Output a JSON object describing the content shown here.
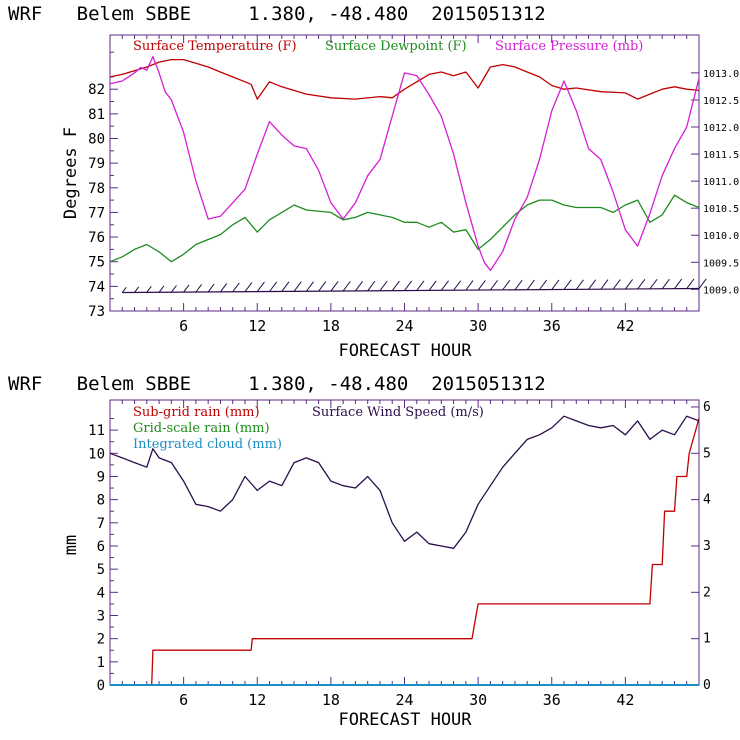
{
  "chart_data": [
    {
      "type": "line",
      "title": "WRF   Belem SBBE     1.380, -48.480  2015051312",
      "xlabel": "FORECAST HOUR",
      "ylabel": "Degrees F",
      "xlim": [
        0,
        48
      ],
      "ylim": [
        73,
        84.2
      ],
      "x_ticks": [
        "6",
        "12",
        "18",
        "24",
        "30",
        "36",
        "42"
      ],
      "y_ticks": [
        "73",
        "74",
        "75",
        "76",
        "77",
        "78",
        "79",
        "80",
        "81",
        "82"
      ],
      "y2_ticks": [
        "1009.0",
        "1009.5",
        "1010.0",
        "1010.5",
        "1011.0",
        "1011.5",
        "1012.0",
        "1012.5",
        "1013.0"
      ],
      "y2lim": [
        1008.6,
        1013.7
      ],
      "legend": [
        "Surface Temperature (F)",
        "Surface Dewpoint (F)",
        "Surface Pressure (mb)"
      ],
      "colors": {
        "temp": "#c00000",
        "dew": "#1e8c1e",
        "pres": "#d61ed6",
        "wind": "#2a0d4a",
        "axis": "#5b2a86"
      },
      "series": [
        {
          "name": "Surface Temperature (F)",
          "axis": "left",
          "x": [
            0,
            1,
            2,
            3,
            4,
            5,
            6,
            7,
            8,
            9,
            10,
            11,
            11.5,
            12,
            13,
            14,
            16,
            18,
            20,
            22,
            23,
            24,
            25,
            26,
            27,
            28,
            29,
            30,
            31,
            32,
            33,
            34,
            35,
            36,
            37,
            38,
            40,
            42,
            43,
            44,
            45,
            46,
            47,
            48
          ],
          "y": [
            82.5,
            82.6,
            82.75,
            82.9,
            83.1,
            83.2,
            83.2,
            83.05,
            82.9,
            82.7,
            82.5,
            82.3,
            82.2,
            81.6,
            82.3,
            82.1,
            81.8,
            81.65,
            81.6,
            81.7,
            81.65,
            82.0,
            82.3,
            82.6,
            82.7,
            82.55,
            82.7,
            82.05,
            82.9,
            83.0,
            82.9,
            82.7,
            82.5,
            82.15,
            82.0,
            82.05,
            81.9,
            81.85,
            81.6,
            81.8,
            82.0,
            82.1,
            82.0,
            81.95
          ]
        },
        {
          "name": "Surface Dewpoint (F)",
          "axis": "left",
          "x": [
            0,
            1,
            2,
            3,
            4,
            5,
            6,
            7,
            8,
            9,
            10,
            11,
            12,
            13,
            14,
            15,
            16,
            18,
            19,
            20,
            21,
            22,
            23,
            24,
            25,
            26,
            27,
            28,
            29,
            30,
            31,
            32,
            33,
            34,
            35,
            36,
            37,
            38,
            40,
            41,
            42,
            43,
            44,
            45,
            46,
            47,
            48
          ],
          "y": [
            75.0,
            75.2,
            75.5,
            75.7,
            75.4,
            75.0,
            75.3,
            75.7,
            75.9,
            76.1,
            76.5,
            76.8,
            76.2,
            76.7,
            77.0,
            77.3,
            77.1,
            77.0,
            76.7,
            76.8,
            77.0,
            76.9,
            76.8,
            76.6,
            76.6,
            76.4,
            76.6,
            76.2,
            76.3,
            75.5,
            75.9,
            76.4,
            76.9,
            77.3,
            77.5,
            77.5,
            77.3,
            77.2,
            77.2,
            77.0,
            77.3,
            77.5,
            76.6,
            76.9,
            77.7,
            77.4,
            77.2
          ]
        },
        {
          "name": "Surface Pressure (mb)",
          "axis": "right",
          "x": [
            0,
            1,
            2,
            2.5,
            3,
            3.5,
            4,
            4.5,
            5,
            6,
            7,
            8,
            9,
            10,
            11,
            12,
            13,
            14,
            15,
            16,
            17,
            18,
            19,
            20,
            21,
            22,
            23,
            24,
            25,
            26,
            27,
            28,
            29,
            30,
            30.5,
            31,
            32,
            33,
            34,
            35,
            36,
            37,
            38,
            39,
            40,
            41,
            42,
            43,
            44,
            45,
            46,
            47,
            48
          ],
          "y": [
            1012.8,
            1012.85,
            1013.0,
            1013.1,
            1013.05,
            1013.3,
            1013.0,
            1012.65,
            1012.5,
            1011.9,
            1011.0,
            1010.3,
            1010.35,
            1010.6,
            1010.85,
            1011.5,
            1012.1,
            1011.85,
            1011.65,
            1011.6,
            1011.2,
            1010.6,
            1010.3,
            1010.6,
            1011.1,
            1011.4,
            1012.2,
            1013.0,
            1012.95,
            1012.6,
            1012.2,
            1011.5,
            1010.6,
            1009.8,
            1009.5,
            1009.35,
            1009.7,
            1010.3,
            1010.7,
            1011.4,
            1012.3,
            1012.85,
            1012.3,
            1011.6,
            1011.4,
            1010.8,
            1010.1,
            1009.8,
            1010.4,
            1011.1,
            1011.6,
            1012.0,
            1012.9
          ]
        }
      ],
      "wind_barbs": {
        "x_start": 1,
        "x_end": 48,
        "step": 1,
        "row_value": 73.75
      }
    },
    {
      "type": "line",
      "title": "WRF   Belem SBBE     1.380, -48.480  2015051312",
      "xlabel": "FORECAST HOUR",
      "ylabel": "mm",
      "xlim": [
        0,
        48
      ],
      "ylim": [
        0,
        12.3
      ],
      "x_ticks": [
        "6",
        "12",
        "18",
        "24",
        "30",
        "36",
        "42"
      ],
      "y_ticks": [
        "0",
        "1",
        "2",
        "3",
        "4",
        "5",
        "6",
        "7",
        "8",
        "9",
        "10",
        "11"
      ],
      "y2_ticks": [
        "0",
        "1",
        "2",
        "3",
        "4",
        "5",
        "6"
      ],
      "y2lim": [
        0,
        6.15
      ],
      "legend": [
        "Sub-grid rain (mm)",
        "Grid-scale rain (mm)",
        "Integrated cloud (mm)",
        "Surface Wind Speed (m/s)"
      ],
      "colors": {
        "subgrid": "#c00000",
        "grid": "#1e8c1e",
        "cloud": "#1a8fc4",
        "wind": "#2a0d4a",
        "axis": "#5b2a86"
      },
      "series": [
        {
          "name": "Sub-grid rain (mm)",
          "axis": "left",
          "x": [
            0,
            3.4,
            3.5,
            11.5,
            11.6,
            29.5,
            30.0,
            44.0,
            44.2,
            45.0,
            45.2,
            46.0,
            46.2,
            47.0,
            47.2,
            48.0
          ],
          "y": [
            0,
            0,
            1.5,
            1.5,
            2.0,
            2.0,
            3.5,
            3.5,
            5.2,
            5.2,
            7.5,
            7.5,
            9.0,
            9.0,
            10.0,
            11.5
          ]
        },
        {
          "name": "Grid-scale rain (mm)",
          "axis": "left",
          "x": [
            0,
            48
          ],
          "y": [
            0,
            0
          ]
        },
        {
          "name": "Integrated cloud (mm)",
          "axis": "left",
          "x": [
            0,
            48
          ],
          "y": [
            0,
            0
          ]
        },
        {
          "name": "Surface Wind Speed (m/s)",
          "axis": "right",
          "x": [
            0,
            1,
            2,
            3,
            3.5,
            4,
            5,
            6,
            7,
            8,
            9,
            10,
            11,
            12,
            13,
            14,
            15,
            16,
            17,
            18,
            19,
            20,
            21,
            22,
            23,
            24,
            25,
            26,
            27,
            28,
            29,
            30,
            31,
            32,
            33,
            34,
            35,
            36,
            37,
            38,
            39,
            40,
            41,
            42,
            43,
            44,
            45,
            46,
            47,
            48
          ],
          "y": [
            5.0,
            4.9,
            4.8,
            4.7,
            5.1,
            4.9,
            4.8,
            4.4,
            3.9,
            3.85,
            3.75,
            4.0,
            4.5,
            4.2,
            4.4,
            4.3,
            4.8,
            4.9,
            4.8,
            4.4,
            4.3,
            4.25,
            4.5,
            4.2,
            3.5,
            3.1,
            3.3,
            3.05,
            3.0,
            2.95,
            3.3,
            3.9,
            4.3,
            4.7,
            5.0,
            5.3,
            5.4,
            5.55,
            5.8,
            5.7,
            5.6,
            5.55,
            5.6,
            5.4,
            5.7,
            5.3,
            5.5,
            5.4,
            5.8,
            5.7
          ]
        }
      ]
    }
  ]
}
